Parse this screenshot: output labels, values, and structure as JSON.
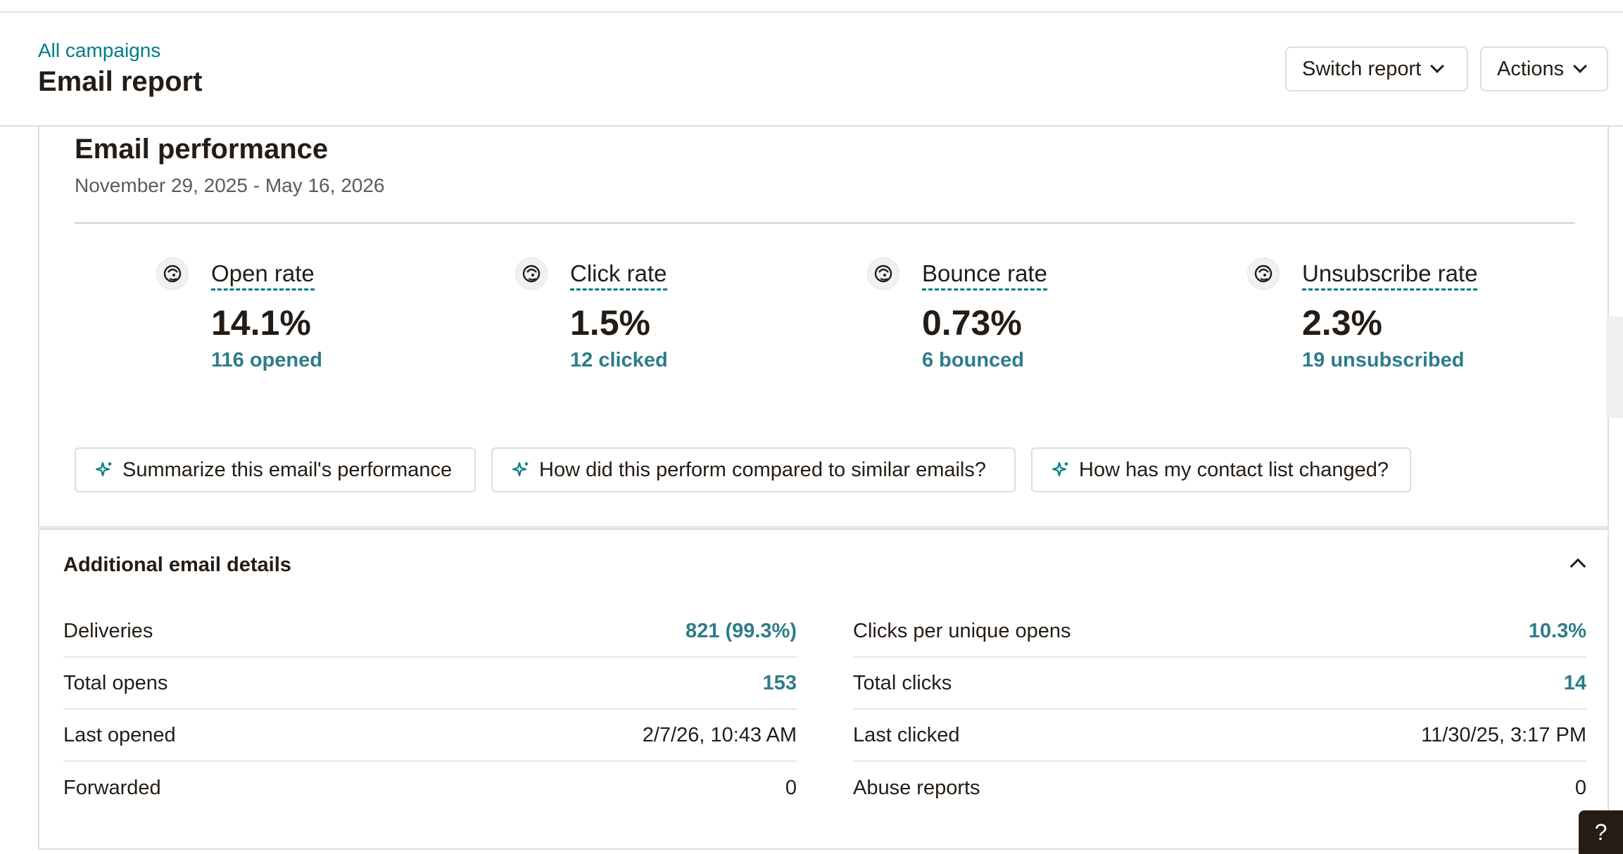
{
  "header": {
    "breadcrumb": "All campaigns",
    "title": "Email report",
    "switch_report_label": "Switch report",
    "actions_label": "Actions"
  },
  "performance": {
    "title": "Email performance",
    "date_range": "November 29, 2025 - May 16, 2026",
    "metrics": [
      {
        "label": "Open rate",
        "value": "14.1%",
        "sub": "116 opened",
        "icon": "mailchimp-freddie-icon"
      },
      {
        "label": "Click rate",
        "value": "1.5%",
        "sub": "12 clicked",
        "icon": "mailchimp-freddie-icon"
      },
      {
        "label": "Bounce rate",
        "value": "0.73%",
        "sub": "6 bounced",
        "icon": "mailchimp-freddie-icon"
      },
      {
        "label": "Unsubscribe rate",
        "value": "2.3%",
        "sub": "19 unsubscribed",
        "icon": "mailchimp-freddie-icon"
      }
    ],
    "ai_prompts": [
      "Summarize this email's performance",
      "How did this perform compared to similar emails?",
      "How has my contact list changed?"
    ]
  },
  "details": {
    "title": "Additional email details",
    "left": [
      {
        "label": "Deliveries",
        "value": "821 (99.3%)",
        "link": true
      },
      {
        "label": "Total opens",
        "value": "153",
        "link": true
      },
      {
        "label": "Last opened",
        "value": "2/7/26, 10:43 AM",
        "link": false
      },
      {
        "label": "Forwarded",
        "value": "0",
        "link": false
      }
    ],
    "right": [
      {
        "label": "Clicks per unique opens",
        "value": "10.3%",
        "link": true
      },
      {
        "label": "Total clicks",
        "value": "14",
        "link": true
      },
      {
        "label": "Last clicked",
        "value": "11/30/25, 3:17 PM",
        "link": false
      },
      {
        "label": "Abuse reports",
        "value": "0",
        "link": false
      }
    ]
  },
  "help": {
    "label": "?"
  },
  "colors": {
    "accent": "#007c89",
    "link_value": "#2d7d8a",
    "text": "#241c15",
    "border": "#dcdedd"
  }
}
